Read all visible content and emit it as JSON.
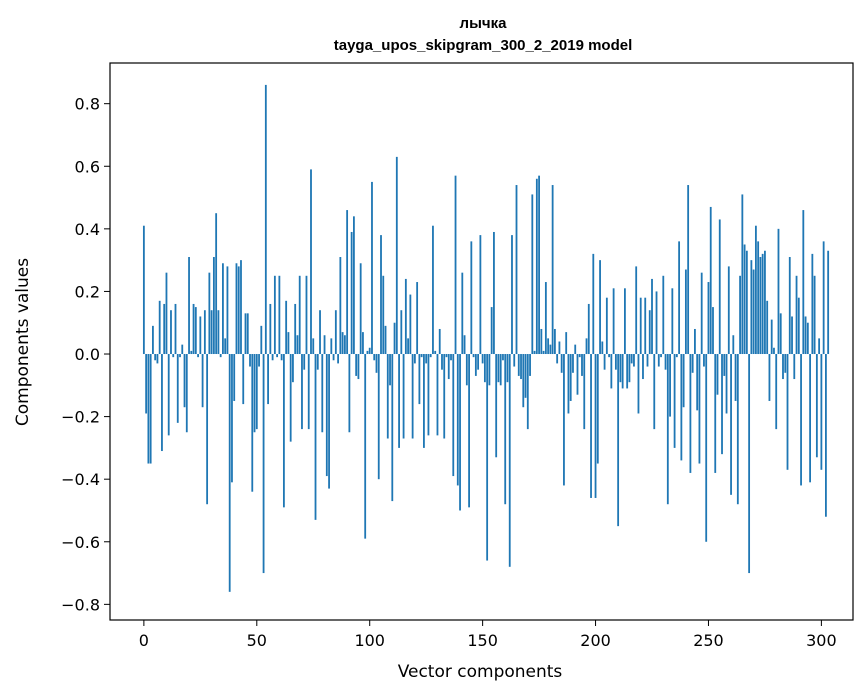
{
  "chart_data": {
    "type": "bar",
    "title": "лычка",
    "subtitle": "tayga_upos_skipgram_300_2_2019 model",
    "xlabel": "Vector components",
    "ylabel": "Components values",
    "xlim": [
      -15,
      314
    ],
    "ylim": [
      -0.85,
      0.93
    ],
    "xticks": [
      0,
      50,
      100,
      150,
      200,
      250,
      300
    ],
    "yticks": [
      -0.8,
      -0.6,
      -0.4,
      -0.2,
      0.0,
      0.2,
      0.4,
      0.6,
      0.8
    ],
    "ytick_labels": [
      "−0.8",
      "−0.6",
      "−0.4",
      "−0.2",
      "0.0",
      "0.2",
      "0.4",
      "0.6",
      "0.8"
    ],
    "bar_color": "#1f77b4",
    "grid": false,
    "values": [
      0.41,
      -0.19,
      -0.35,
      -0.35,
      0.09,
      -0.02,
      -0.03,
      0.17,
      -0.31,
      0.16,
      0.26,
      -0.26,
      0.14,
      -0.01,
      0.16,
      -0.22,
      -0.01,
      0.03,
      -0.17,
      -0.25,
      0.31,
      0.01,
      0.16,
      0.15,
      -0.01,
      0.12,
      -0.17,
      0.14,
      -0.48,
      0.26,
      0.14,
      0.31,
      0.45,
      0.14,
      -0.01,
      0.29,
      0.05,
      0.28,
      -0.76,
      -0.41,
      -0.15,
      0.29,
      0.28,
      0.3,
      -0.16,
      0.13,
      0.13,
      -0.04,
      -0.44,
      -0.25,
      -0.24,
      -0.04,
      0.09,
      -0.7,
      0.86,
      -0.16,
      0.16,
      -0.02,
      0.25,
      -0.01,
      0.25,
      -0.02,
      -0.49,
      0.17,
      0.07,
      -0.28,
      -0.09,
      0.16,
      0.06,
      0.25,
      -0.24,
      -0.05,
      0.25,
      -0.24,
      0.59,
      0.05,
      -0.53,
      -0.05,
      0.14,
      -0.25,
      0.06,
      -0.39,
      -0.43,
      0.05,
      -0.02,
      0.14,
      -0.03,
      0.31,
      0.07,
      0.06,
      0.46,
      -0.25,
      0.39,
      0.44,
      -0.07,
      -0.08,
      0.29,
      0.07,
      -0.59,
      0.01,
      0.02,
      0.55,
      -0.02,
      -0.06,
      -0.4,
      0.38,
      0.25,
      0.09,
      -0.27,
      -0.1,
      -0.47,
      0.1,
      0.63,
      -0.3,
      0.14,
      -0.27,
      0.24,
      0.05,
      0.19,
      -0.27,
      -0.03,
      0.23,
      -0.16,
      -0.01,
      -0.3,
      -0.03,
      -0.26,
      -0.01,
      0.41,
      0.01,
      -0.26,
      0.08,
      -0.05,
      -0.27,
      -0.01,
      -0.08,
      -0.02,
      -0.39,
      0.57,
      -0.42,
      -0.5,
      0.26,
      0.06,
      -0.1,
      -0.49,
      0.36,
      -0.01,
      -0.07,
      -0.05,
      0.38,
      -0.03,
      -0.09,
      -0.66,
      -0.1,
      0.15,
      0.39,
      -0.33,
      -0.09,
      -0.1,
      -0.02,
      -0.48,
      -0.09,
      -0.68,
      0.38,
      -0.04,
      0.54,
      -0.07,
      -0.08,
      -0.17,
      -0.14,
      -0.24,
      -0.07,
      0.51,
      0.01,
      0.56,
      0.57,
      0.08,
      0.01,
      0.23,
      0.05,
      0.03,
      0.54,
      0.08,
      -0.03,
      0.04,
      -0.06,
      -0.42,
      0.07,
      -0.19,
      -0.15,
      -0.06,
      0.03,
      -0.13,
      -0.01,
      -0.07,
      -0.24,
      0.05,
      0.16,
      -0.46,
      0.32,
      -0.46,
      -0.35,
      0.3,
      0.04,
      -0.05,
      0.18,
      -0.01,
      -0.11,
      0.21,
      -0.05,
      -0.55,
      -0.09,
      -0.11,
      0.21,
      -0.11,
      -0.09,
      -0.03,
      -0.04,
      0.28,
      -0.19,
      0.18,
      -0.08,
      0.18,
      -0.04,
      0.14,
      0.24,
      -0.24,
      0.2,
      -0.04,
      -0.01,
      0.25,
      -0.05,
      -0.48,
      -0.2,
      0.21,
      -0.3,
      -0.01,
      0.36,
      -0.34,
      -0.17,
      0.27,
      0.54,
      -0.38,
      -0.06,
      0.08,
      -0.18,
      -0.35,
      0.26,
      -0.04,
      -0.6,
      0.23,
      0.47,
      0.15,
      -0.38,
      -0.13,
      0.43,
      -0.32,
      -0.07,
      -0.19,
      0.28,
      -0.45,
      0.06,
      -0.15,
      -0.48,
      0.25,
      0.51,
      0.35,
      0.33,
      -0.7,
      0.3,
      0.27,
      0.41,
      0.36,
      0.31,
      0.32,
      0.33,
      0.17,
      -0.15,
      0.11,
      0.02,
      -0.24,
      0.4,
      0.13,
      -0.08,
      -0.06,
      -0.37,
      0.31,
      0.12,
      -0.08,
      0.25,
      0.18,
      -0.42,
      0.46,
      0.12,
      0.1,
      -0.41,
      0.32,
      0.25,
      -0.33,
      0.05,
      -0.37,
      0.36,
      -0.52,
      0.33
    ]
  }
}
